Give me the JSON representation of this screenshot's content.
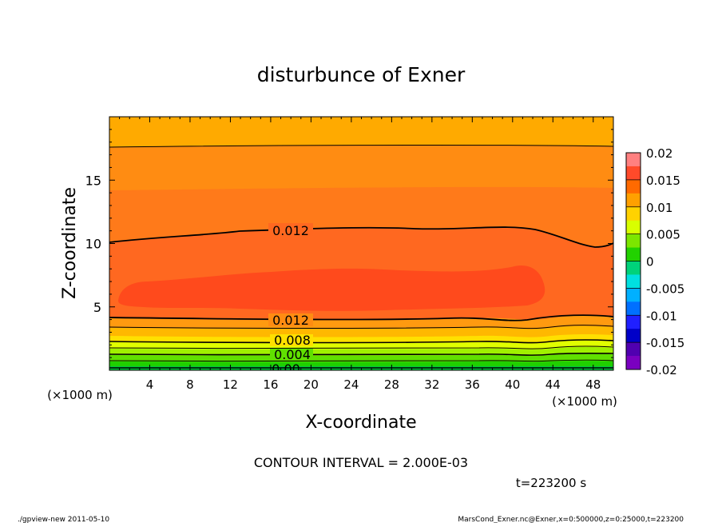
{
  "chart_data": {
    "type": "heatmap",
    "title": "disturbunce of Exner",
    "xlabel": "X-coordinate",
    "ylabel": "Z-coordinate",
    "x_unit": "(×1000 m)",
    "y_unit": "(×1000 m)",
    "xlim": [
      0,
      50
    ],
    "ylim": [
      0,
      20
    ],
    "x_ticks": [
      4,
      8,
      12,
      16,
      20,
      24,
      28,
      32,
      36,
      40,
      44,
      48
    ],
    "y_ticks": [
      5,
      10,
      15
    ],
    "contour_interval_text": "CONTOUR INTERVAL = 2.000E-03",
    "time_text": "t=223200 s",
    "colorbar": {
      "ticks": [
        "0.02",
        "0.015",
        "0.01",
        "0.005",
        "0",
        "-0.005",
        "-0.01",
        "-0.015",
        "-0.02"
      ],
      "min": -0.02,
      "max": 0.02,
      "colors": [
        "#ff8080",
        "#ff4a2a",
        "#ff6a00",
        "#ffa000",
        "#ffd200",
        "#d8ff00",
        "#7ce600",
        "#22d200",
        "#00d27a",
        "#00e0e0",
        "#00b0ff",
        "#0070ff",
        "#2020ff",
        "#0000c8",
        "#5000b0",
        "#7a00c0"
      ]
    },
    "filled_bands": [
      {
        "value_range": [
          0.016,
          0.018
        ],
        "color": "#ff3a1e",
        "region": "core blob x 0.8-43, z 5.2-8.3"
      },
      {
        "value_range": [
          0.014,
          0.016
        ],
        "color": "#ff5a1c",
        "z_range": [
          4.2,
          14.3
        ]
      },
      {
        "value_range": [
          0.012,
          0.014
        ],
        "color": "#ff6f22",
        "z_range": [
          3.8,
          10.8
        ]
      },
      {
        "value_range": [
          0.01,
          0.012
        ],
        "color": "#ff8c12",
        "z_range": [
          2.7,
          17.6
        ]
      },
      {
        "value_range": [
          0.008,
          0.01
        ],
        "color": "#ffaa00",
        "z_range": [
          17.6,
          20.0
        ]
      }
    ],
    "contour_lines": [
      {
        "value": 0.012,
        "label": "0.012",
        "z_profile": [
          [
            0,
            10.0
          ],
          [
            10,
            10.6
          ],
          [
            20,
            11.1
          ],
          [
            30,
            11.0
          ],
          [
            40,
            11.3
          ],
          [
            44,
            10.7
          ],
          [
            48,
            9.7
          ],
          [
            50,
            10.0
          ]
        ]
      },
      {
        "value": 0.012,
        "label": "0.012",
        "z_profile": [
          [
            0,
            4.1
          ],
          [
            12,
            3.9
          ],
          [
            24,
            3.8
          ],
          [
            36,
            4.1
          ],
          [
            40,
            3.7
          ],
          [
            44,
            4.2
          ],
          [
            50,
            4.2
          ]
        ]
      },
      {
        "value": 0.008,
        "label": "0.008",
        "z_profile": [
          [
            0,
            2.3
          ],
          [
            20,
            2.2
          ],
          [
            36,
            2.4
          ],
          [
            40,
            2.1
          ],
          [
            50,
            2.4
          ]
        ]
      },
      {
        "value": 0.004,
        "label": "0.004",
        "z_profile": [
          [
            0,
            1.2
          ],
          [
            20,
            1.1
          ],
          [
            40,
            1.0
          ],
          [
            50,
            1.2
          ]
        ]
      },
      {
        "value": 0.0,
        "label": "0.00",
        "z_profile": [
          [
            0,
            0.1
          ],
          [
            50,
            0.1
          ]
        ]
      }
    ]
  },
  "footer": {
    "left": "./gpview-new   2011-05-10",
    "right": "MarsCond_Exner.nc@Exner,x=0:500000,z=0:25000,t=223200"
  }
}
